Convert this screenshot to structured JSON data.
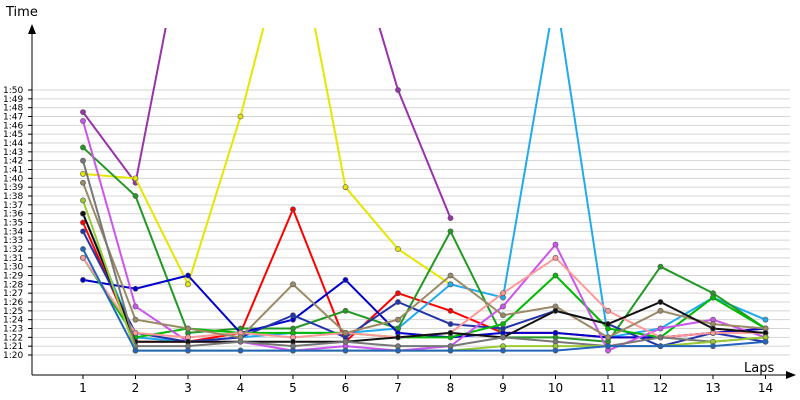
{
  "chart_data": {
    "type": "line",
    "title": "",
    "xlabel": "Laps",
    "ylabel": "Time",
    "x": [
      1,
      2,
      3,
      4,
      5,
      6,
      7,
      8,
      9,
      10,
      11,
      12,
      13,
      14
    ],
    "x_tick_labels": [
      "1",
      "2",
      "3",
      "4",
      "5",
      "6",
      "7",
      "8",
      "9",
      "10",
      "11",
      "12",
      "13",
      "14"
    ],
    "y_tick_labels": [
      "1:20",
      "1:21",
      "1:22",
      "1:23",
      "1:24",
      "1:25",
      "1:26",
      "1:27",
      "1:28",
      "1:29",
      "1:30",
      "1:31",
      "1:32",
      "1:33",
      "1:34",
      "1:35",
      "1:36",
      "1:37",
      "1:38",
      "1:39",
      "1:40",
      "1:41",
      "1:42",
      "1:43",
      "1:44",
      "1:45",
      "1:46",
      "1:47",
      "1:48",
      "1:49",
      "1:50"
    ],
    "y_units": "seconds",
    "ylim": [
      78,
      112
    ],
    "grid": true,
    "series": [
      {
        "color": "#ff0000",
        "values": [
          95,
          81.5,
          81.5,
          82.5,
          96.5,
          81.5,
          87,
          85,
          82.5,
          82.5,
          82,
          82,
          82.5,
          83
        ]
      },
      {
        "color": "#9933aa",
        "values": [
          107.5,
          99.5,
          130,
          null,
          null,
          130,
          110,
          95.5,
          null,
          null,
          null,
          null,
          null,
          null
        ]
      },
      {
        "color": "#e6e600",
        "values": [
          100.5,
          100,
          88,
          107,
          130,
          99,
          92,
          88,
          null,
          null,
          null,
          null,
          null,
          null
        ]
      },
      {
        "color": "#22aaee",
        "values": [
          96,
          82,
          81.5,
          82,
          82.5,
          82.5,
          83,
          88,
          86.5,
          121,
          82,
          83,
          86.5,
          84
        ]
      },
      {
        "color": "#229922",
        "values": [
          103.5,
          98,
          82.5,
          83,
          83,
          85,
          83,
          94,
          82,
          82,
          81.5,
          90,
          87,
          83
        ]
      },
      {
        "color": "#0000cc",
        "values": [
          88.5,
          87.5,
          89,
          82.5,
          84,
          88.5,
          82.5,
          82,
          82.5,
          82.5,
          82,
          82,
          82.5,
          83
        ]
      },
      {
        "color": "#2233aa",
        "values": [
          94,
          82.5,
          81.5,
          82,
          84.5,
          82,
          86,
          83.5,
          83,
          85,
          83.5,
          81,
          82.5,
          81.5
        ]
      },
      {
        "color": "#00bb00",
        "values": [
          91,
          82,
          83,
          82.5,
          82.5,
          82.5,
          82,
          82,
          83.5,
          89,
          83,
          82,
          86.5,
          83
        ]
      },
      {
        "color": "#cc55ee",
        "values": [
          106.5,
          85.5,
          81.5,
          81.5,
          80.5,
          81,
          80.5,
          81,
          85.5,
          92.5,
          80.5,
          83,
          84,
          82
        ]
      },
      {
        "color": "#ff9999",
        "values": [
          91,
          82.5,
          82,
          82.5,
          82,
          82.5,
          82,
          82.5,
          87,
          91,
          85,
          82,
          82.5,
          82.5
        ]
      },
      {
        "color": "#9a8a66",
        "values": [
          99.5,
          84,
          83,
          82,
          88,
          82.5,
          84,
          89,
          84.5,
          85.5,
          82,
          85,
          83.5,
          83
        ]
      },
      {
        "color": "#111111",
        "values": [
          96,
          81.5,
          81.5,
          81.5,
          81.5,
          81.5,
          82,
          82.5,
          82,
          85,
          83.5,
          86,
          83,
          82.5
        ]
      },
      {
        "color": "#777777",
        "values": [
          102,
          81,
          81,
          81.5,
          81,
          81.5,
          81,
          81,
          82,
          81.5,
          81,
          82,
          81.5,
          82
        ]
      },
      {
        "color": "#99cc33",
        "values": [
          97.5,
          80.5,
          80.5,
          80.5,
          80.5,
          80.5,
          80.5,
          80.5,
          81,
          81,
          81,
          81,
          81.5,
          82
        ]
      },
      {
        "color": "#2266bb",
        "values": [
          92,
          80.5,
          80.5,
          80.5,
          80.5,
          80.5,
          80.5,
          80.5,
          80.5,
          80.5,
          81,
          81,
          81,
          81.5
        ]
      }
    ]
  }
}
